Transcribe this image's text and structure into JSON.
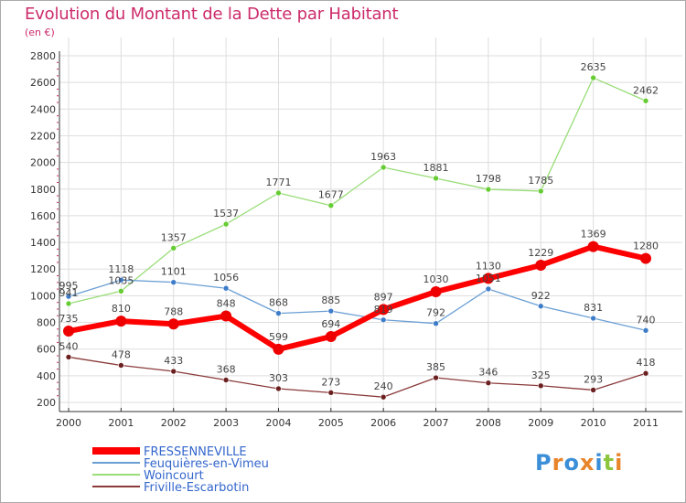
{
  "header": {
    "title": "Evolution du Montant de la Dette par Habitant",
    "unit": "(en €)"
  },
  "colors": {
    "title": "#cc2b6b",
    "axis": "#333333",
    "grid": "#dddddd",
    "tick_dots": "#cc2b6b"
  },
  "chart_data": {
    "type": "line",
    "title": "Evolution du Montant de la Dette par Habitant",
    "ylabel": "(en €)",
    "xlabel": "",
    "ylim": [
      200,
      2800
    ],
    "yticks": [
      "200",
      "400",
      "600",
      "800",
      "1000",
      "1200",
      "1400",
      "1600",
      "1800",
      "2000",
      "2200",
      "2400",
      "2600",
      "2800"
    ],
    "categories": [
      "2000",
      "2001",
      "2002",
      "2003",
      "2004",
      "2005",
      "2006",
      "2007",
      "2008",
      "2009",
      "2010",
      "2011"
    ],
    "legend_position": "bottom-left",
    "series": [
      {
        "name": "Woincourt",
        "color": "#99dd77",
        "marker": "#66cc33",
        "values": [
          941,
          1035,
          1357,
          1537,
          1771,
          1677,
          1963,
          1881,
          1798,
          1785,
          2635,
          2462
        ],
        "labels": [
          "941",
          "1035",
          "1357",
          "1537",
          "1771",
          "1677",
          "1963",
          "1881",
          "1798",
          "1785",
          "2635",
          "2462"
        ]
      },
      {
        "name": "Feuquières-en-Vimeu",
        "color": "#6a9fd4",
        "marker": "#3d7cc9",
        "values": [
          995,
          1118,
          1101,
          1056,
          868,
          885,
          819,
          792,
          1051,
          922,
          831,
          740
        ],
        "labels": [
          "995",
          "1118",
          "1101",
          "1056",
          "868",
          "885",
          "819",
          "792",
          "1051",
          "922",
          "831",
          "740"
        ]
      },
      {
        "name": "Friville-Escarbotin",
        "color": "#8b3a3a",
        "marker": "#6b1f1f",
        "values": [
          540,
          478,
          433,
          368,
          303,
          273,
          240,
          385,
          346,
          325,
          293,
          418
        ],
        "labels": [
          "540",
          "478",
          "433",
          "368",
          "303",
          "273",
          "240",
          "385",
          "346",
          "325",
          "293",
          "418"
        ]
      },
      {
        "name": "FRESSENNEVILLE",
        "color": "#ff0000",
        "marker": "#ee0000",
        "values": [
          735,
          810,
          788,
          848,
          599,
          694,
          897,
          1030,
          1130,
          1229,
          1369,
          1280
        ],
        "labels": [
          "735",
          "810",
          "788",
          "848",
          "599",
          "694",
          "897",
          "1030",
          "1130",
          "1229",
          "1369",
          "1280"
        ]
      }
    ],
    "legend": [
      "FRESSENNEVILLE",
      "Feuquières-en-Vimeu",
      "Woincourt",
      "Friville-Escarbotin"
    ]
  },
  "logo": {
    "letters": [
      "P",
      "r",
      "o",
      "x",
      "i",
      "t",
      "i"
    ],
    "colors": [
      "#3b8ed8",
      "#e8842a",
      "#3b8ed8",
      "#e8842a",
      "#3b8ed8",
      "#8cc63f",
      "#e8842a"
    ]
  }
}
